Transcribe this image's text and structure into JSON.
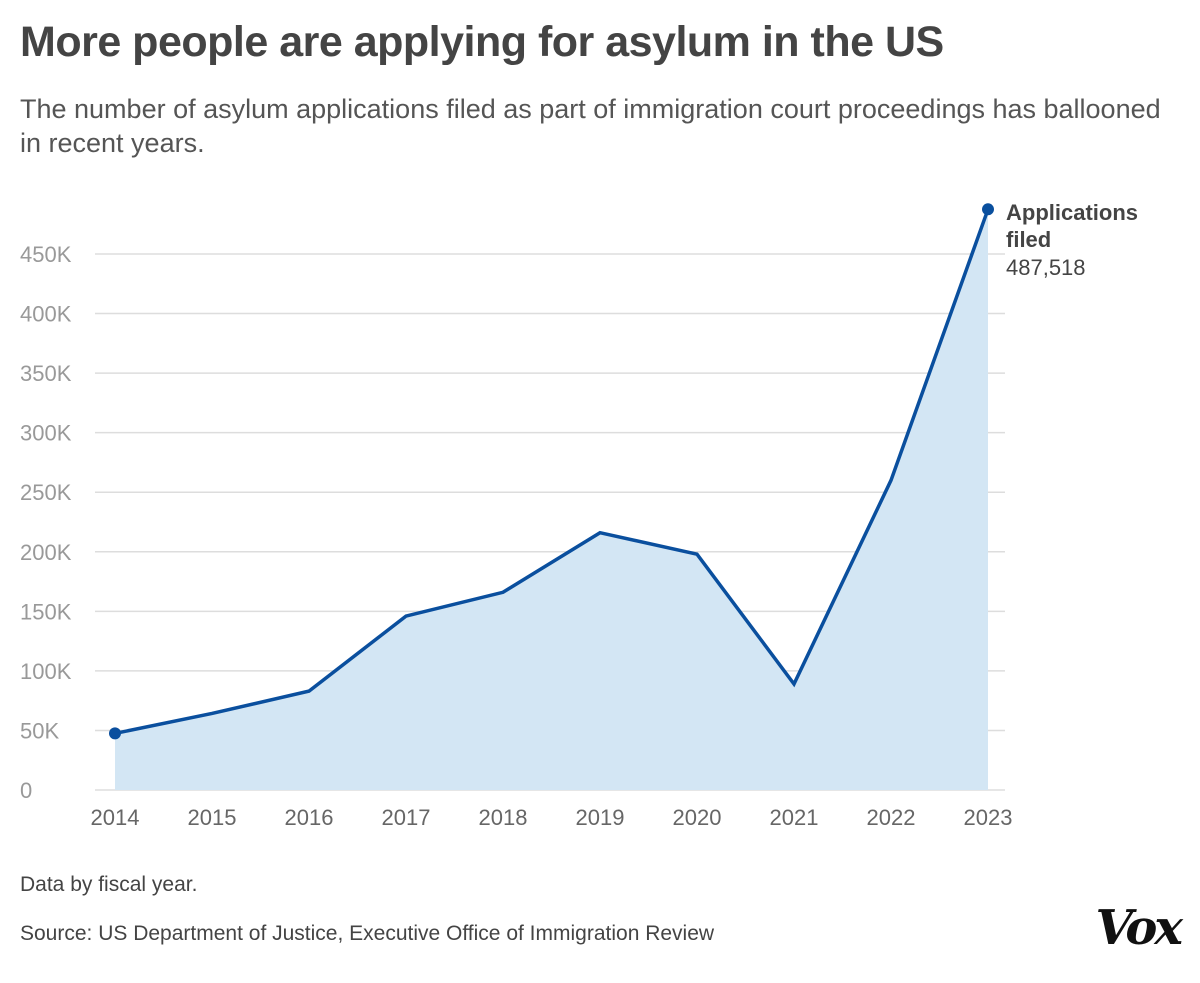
{
  "title": "More people are applying for asylum in the US",
  "subtitle": "The number of asylum applications filed as part of immigration court proceedings has ballooned in recent years.",
  "note": "Data by fiscal year.",
  "source": "Source: US Department of Justice, Executive Office of Immigration Review",
  "logo": "Vox",
  "chart_data": {
    "type": "area",
    "x": [
      2014,
      2015,
      2016,
      2017,
      2018,
      2019,
      2020,
      2021,
      2022,
      2023
    ],
    "series": [
      {
        "name": "Applications filed",
        "values": [
          47500,
          64300,
          83000,
          146000,
          166000,
          216000,
          198000,
          89000,
          260000,
          487518
        ]
      }
    ],
    "end_label": {
      "name": "Applications filed",
      "value": "487,518"
    },
    "ylim": [
      0,
      450000
    ],
    "yticks": [
      "0",
      "50K",
      "100K",
      "150K",
      "200K",
      "250K",
      "300K",
      "350K",
      "400K",
      "450K"
    ],
    "grid": true,
    "colors": {
      "line": "#0a4f9e",
      "fill": "#d3e6f4",
      "grid": "#dddddd",
      "tick": "#999999"
    }
  }
}
